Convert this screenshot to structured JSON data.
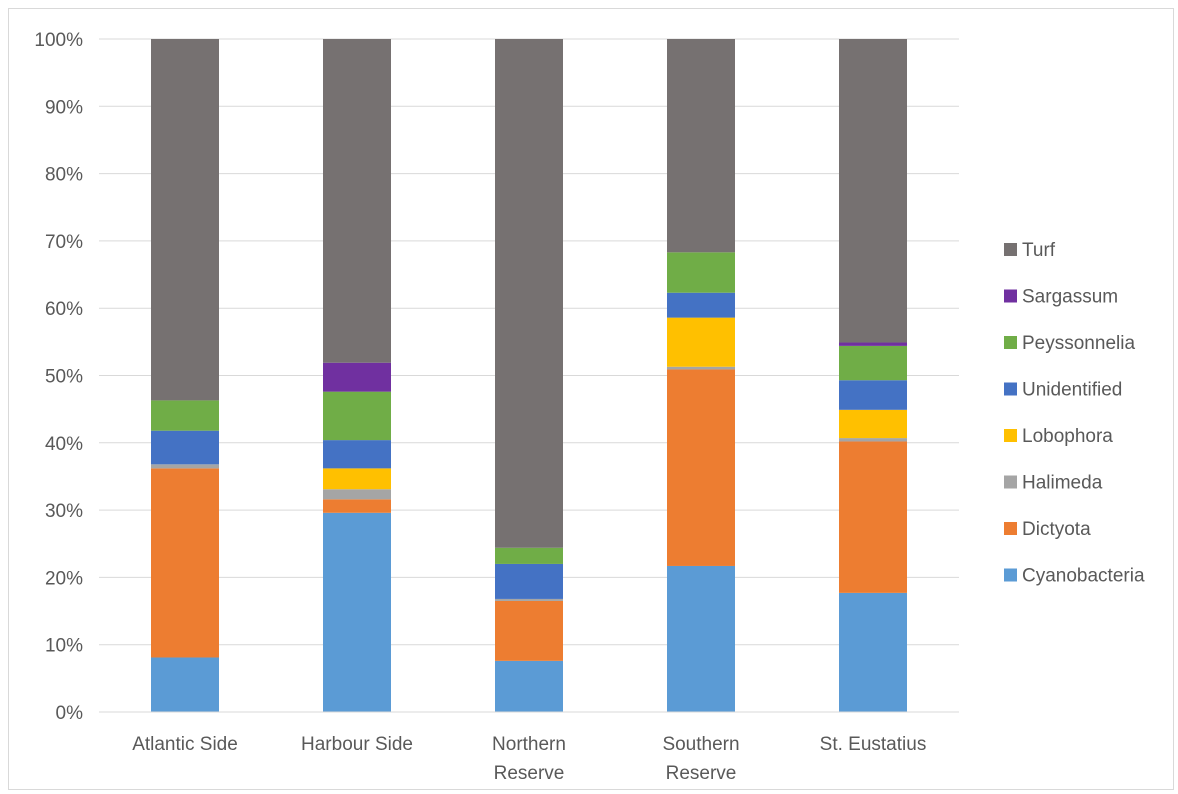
{
  "chart_data": {
    "type": "bar",
    "stacked": "percent",
    "title": "",
    "xlabel": "",
    "ylabel": "",
    "ylim": [
      0,
      100
    ],
    "yticks": [
      "0%",
      "10%",
      "20%",
      "30%",
      "40%",
      "50%",
      "60%",
      "70%",
      "80%",
      "90%",
      "100%"
    ],
    "grid": true,
    "legend_position": "right",
    "categories": [
      [
        "Atlantic Side"
      ],
      [
        "Harbour Side"
      ],
      [
        "Northern",
        "Reserve"
      ],
      [
        "Southern",
        "Reserve"
      ],
      [
        "St. Eustatius"
      ]
    ],
    "series": [
      {
        "name": "Cyanobacteria",
        "color": "#5b9bd5",
        "values": [
          8.1,
          29.6,
          7.6,
          21.7,
          17.7
        ]
      },
      {
        "name": "Dictyota",
        "color": "#ed7d31",
        "values": [
          28.1,
          2.0,
          8.9,
          29.2,
          22.5
        ]
      },
      {
        "name": "Halimeda",
        "color": "#a5a5a5",
        "values": [
          0.6,
          1.5,
          0.3,
          0.4,
          0.5
        ]
      },
      {
        "name": "Lobophora",
        "color": "#ffc000",
        "values": [
          0.0,
          3.1,
          0.0,
          7.3,
          4.2
        ]
      },
      {
        "name": "Unidentified",
        "color": "#4472c4",
        "values": [
          5.0,
          4.2,
          5.2,
          3.7,
          4.4
        ]
      },
      {
        "name": "Peyssonnelia",
        "color": "#70ad47",
        "values": [
          4.5,
          7.2,
          2.4,
          6.0,
          5.1
        ]
      },
      {
        "name": "Sargassum",
        "color": "#7030a0",
        "values": [
          0.0,
          4.3,
          0.0,
          0.0,
          0.5
        ]
      },
      {
        "name": "Turf",
        "color": "#767171",
        "values": [
          53.7,
          48.1,
          75.6,
          31.7,
          45.1
        ]
      }
    ]
  }
}
